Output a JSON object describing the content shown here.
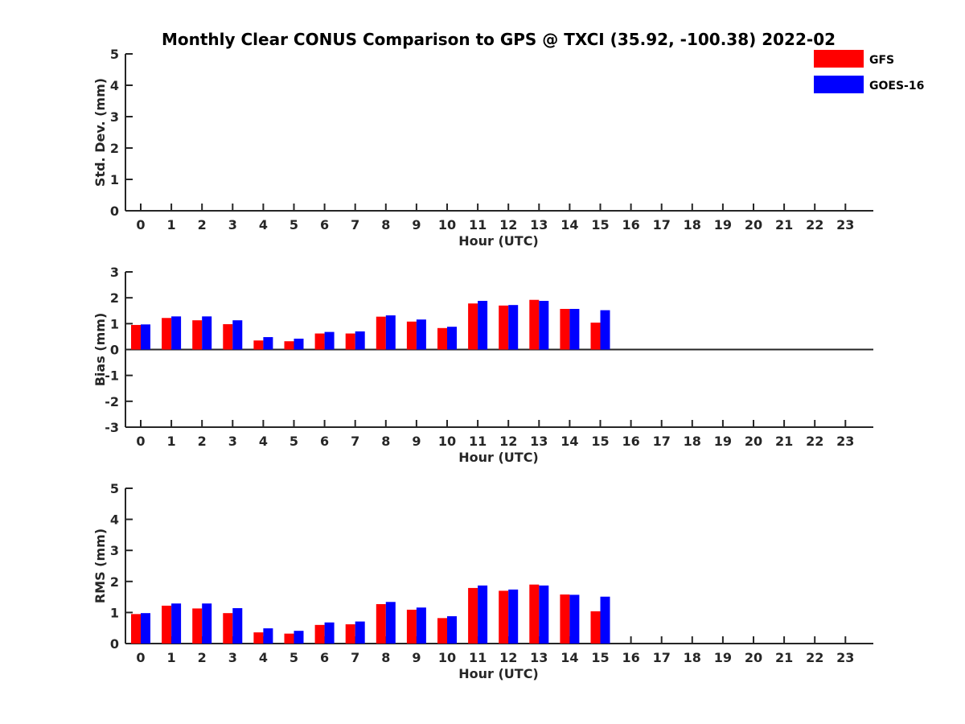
{
  "chart_data": {
    "type": "bar",
    "title": "Monthly Clear CONUS Comparison to GPS @ TXCI (35.92, -100.38) 2022-02",
    "legend": {
      "placement": "top-right",
      "entries": [
        {
          "label": "GFS",
          "color": "#ff0000"
        },
        {
          "label": "GOES-16",
          "color": "#0000ff"
        }
      ]
    },
    "categories": [
      "0",
      "1",
      "2",
      "3",
      "4",
      "5",
      "6",
      "7",
      "8",
      "9",
      "10",
      "11",
      "12",
      "13",
      "14",
      "15",
      "16",
      "17",
      "18",
      "19",
      "20",
      "21",
      "22",
      "23"
    ],
    "panels": [
      {
        "id": "std",
        "ylabel": "Std. Dev. (mm)",
        "xlabel": "Hour (UTC)",
        "ylim": [
          0,
          5
        ],
        "yticks": [
          "0",
          "1",
          "2",
          "3",
          "4",
          "5"
        ],
        "zero_line": false,
        "series": [
          {
            "name": "GFS",
            "color": "#ff0000",
            "values": []
          },
          {
            "name": "GOES-16",
            "color": "#0000ff",
            "values": []
          }
        ]
      },
      {
        "id": "bias",
        "ylabel": "Bias (mm)",
        "xlabel": "Hour (UTC)",
        "ylim": [
          -3,
          3
        ],
        "yticks": [
          "-3",
          "-2",
          "-1",
          "0",
          "1",
          "2",
          "3"
        ],
        "zero_line": true,
        "series": [
          {
            "name": "GFS",
            "color": "#ff0000",
            "values": [
              0.95,
              1.22,
              1.13,
              0.98,
              0.35,
              0.32,
              0.62,
              0.62,
              1.27,
              1.08,
              0.83,
              1.78,
              1.7,
              1.92,
              1.57,
              1.04
            ]
          },
          {
            "name": "GOES-16",
            "color": "#0000ff",
            "values": [
              0.97,
              1.28,
              1.28,
              1.13,
              0.48,
              0.42,
              0.68,
              0.7,
              1.32,
              1.16,
              0.88,
              1.88,
              1.72,
              1.88,
              1.57,
              1.52
            ]
          }
        ]
      },
      {
        "id": "rms",
        "ylabel": "RMS (mm)",
        "xlabel": "Hour (UTC)",
        "ylim": [
          0,
          5
        ],
        "yticks": [
          "0",
          "1",
          "2",
          "3",
          "4",
          "5"
        ],
        "zero_line": false,
        "series": [
          {
            "name": "GFS",
            "color": "#ff0000",
            "values": [
              0.95,
              1.22,
              1.13,
              0.98,
              0.36,
              0.32,
              0.6,
              0.62,
              1.27,
              1.09,
              0.82,
              1.79,
              1.7,
              1.9,
              1.58,
              1.04
            ]
          },
          {
            "name": "GOES-16",
            "color": "#0000ff",
            "values": [
              0.98,
              1.29,
              1.29,
              1.14,
              0.49,
              0.41,
              0.68,
              0.71,
              1.34,
              1.16,
              0.88,
              1.87,
              1.74,
              1.87,
              1.57,
              1.51
            ]
          }
        ]
      }
    ]
  }
}
